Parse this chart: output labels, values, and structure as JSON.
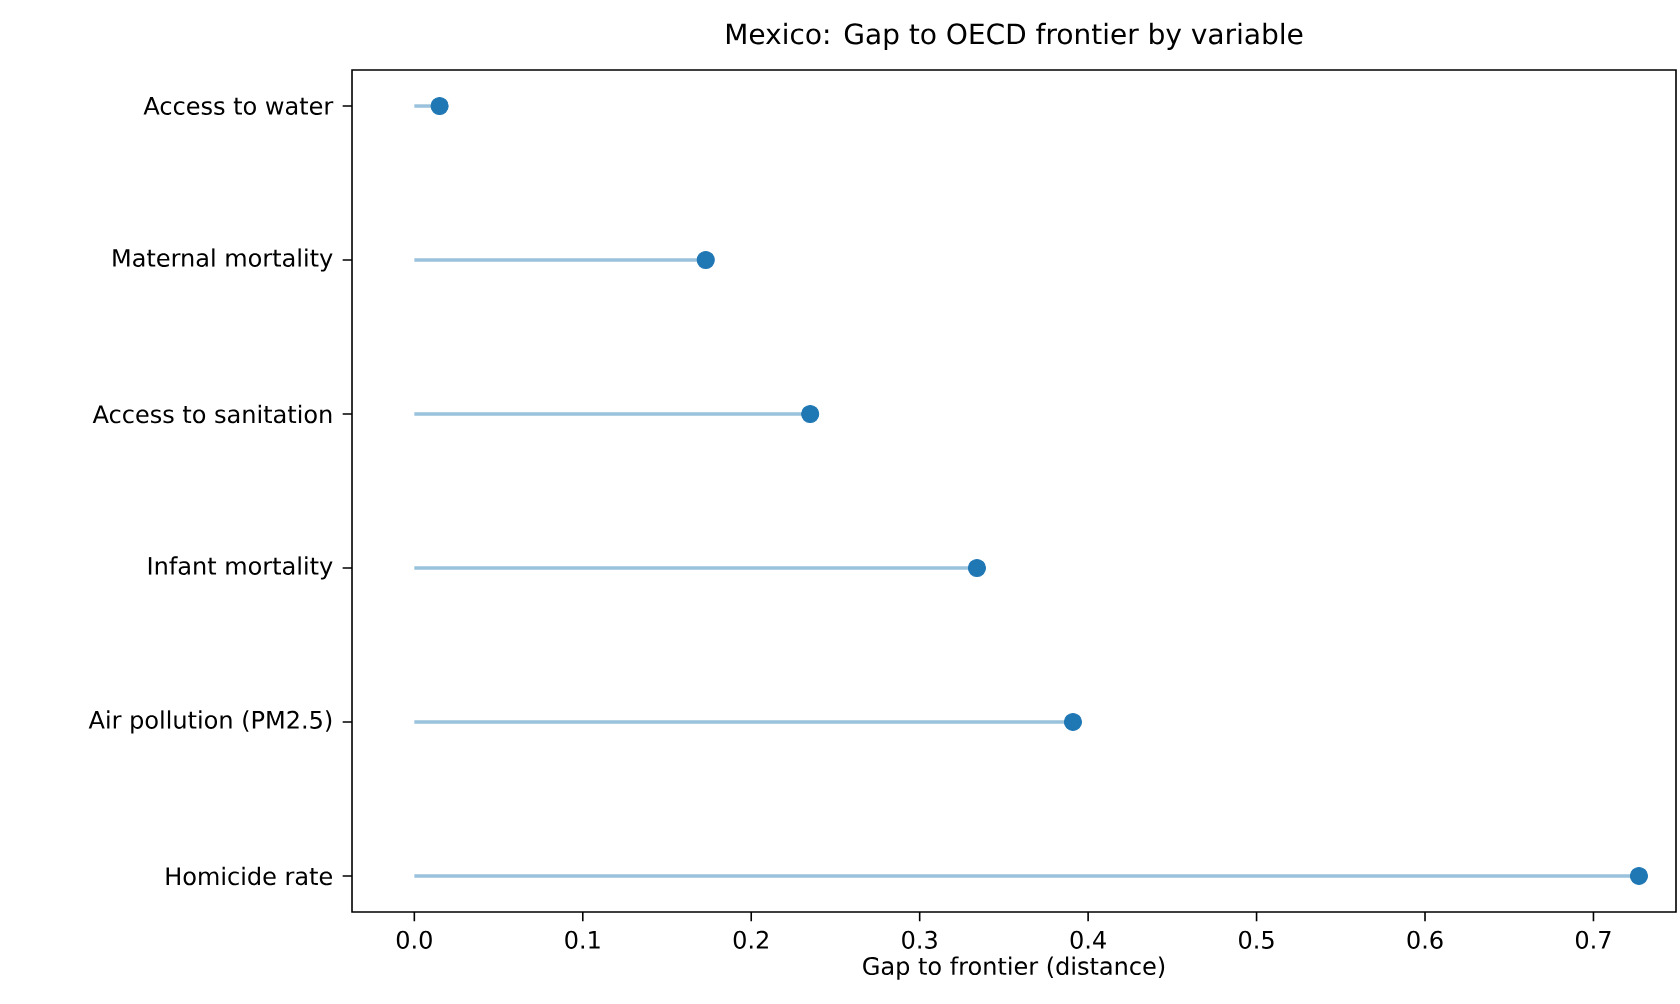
{
  "chart_data": {
    "type": "lollipop",
    "orientation": "horizontal",
    "title": "Mexico: Gap to OECD frontier by variable",
    "xlabel": "Gap to frontier (distance)",
    "categories": [
      "Access to water",
      "Maternal mortality",
      "Access to sanitation",
      "Infant mortality",
      "Air pollution (PM2.5)",
      "Homicide rate"
    ],
    "values": [
      0.015,
      0.173,
      0.235,
      0.334,
      0.391,
      0.727
    ],
    "color": "#1f77b4",
    "marker": "circle",
    "xlim": [
      -0.037,
      0.749
    ],
    "xticks": [
      {
        "value": 0,
        "label": "0.0"
      },
      0.1,
      0.2,
      0.3,
      0.4,
      0.5,
      0.6,
      0.7
    ]
  }
}
